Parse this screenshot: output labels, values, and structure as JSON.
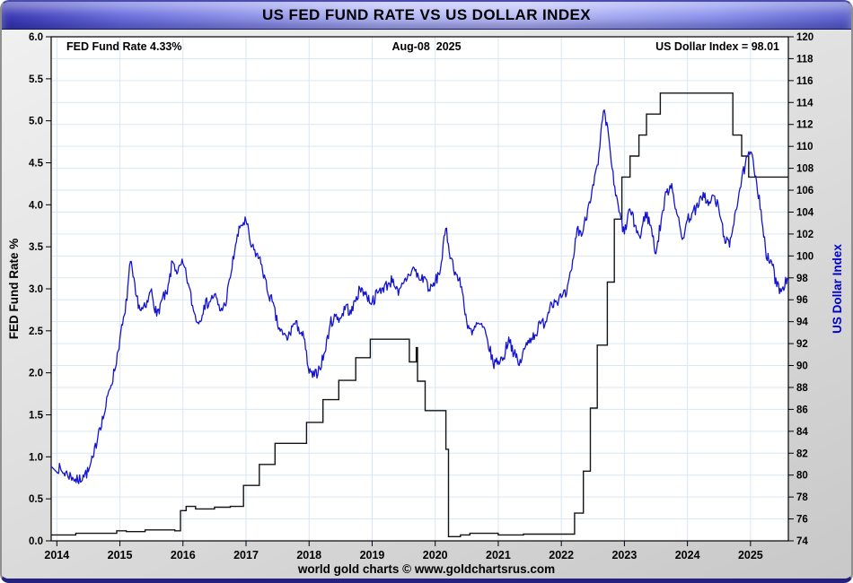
{
  "window": {
    "title": "US FED FUND RATE VS US DOLLAR INDEX"
  },
  "footer": {
    "caption": "world gold charts © www.goldchartsrus.com"
  },
  "chart_data": {
    "type": "line",
    "title": "US FED FUND RATE VS US DOLLAR INDEX",
    "annotations": {
      "left": "FED Fund Rate 4.33%",
      "center": "Aug-08  2025",
      "right": "US Dollar Index = 98.01"
    },
    "latest": {
      "fed_fund_rate_pct": 4.33,
      "us_dollar_index": 98.01,
      "as_of": "Aug-08 2025"
    },
    "x_axis": {
      "range": [
        2013.91,
        2025.6
      ],
      "year_ticks": [
        2014,
        2015,
        2016,
        2017,
        2018,
        2019,
        2020,
        2021,
        2022,
        2023,
        2024,
        2025
      ],
      "grid": true
    },
    "left_axis": {
      "label": "FED Fund Rate %",
      "range": [
        0.0,
        6.0
      ],
      "tick_step": 0.5,
      "color": "#000000"
    },
    "right_axis": {
      "label": "US Dollar Index",
      "range": [
        74,
        120
      ],
      "tick_step": 2,
      "color": "#0000cc"
    },
    "grid_color": "#d9e6f4",
    "plot_bg": "#ffffff",
    "series": [
      {
        "name": "FED Fund Rate",
        "axis": "left",
        "type": "step",
        "color": "#141414",
        "points": [
          [
            2014.0,
            0.07
          ],
          [
            2014.3,
            0.09
          ],
          [
            2014.6,
            0.09
          ],
          [
            2014.95,
            0.12
          ],
          [
            2015.1,
            0.11
          ],
          [
            2015.4,
            0.13
          ],
          [
            2015.7,
            0.13
          ],
          [
            2015.87,
            0.12
          ],
          [
            2015.96,
            0.36
          ],
          [
            2016.05,
            0.41
          ],
          [
            2016.2,
            0.38
          ],
          [
            2016.5,
            0.4
          ],
          [
            2016.75,
            0.41
          ],
          [
            2016.96,
            0.66
          ],
          [
            2017.21,
            0.91
          ],
          [
            2017.46,
            1.16
          ],
          [
            2017.96,
            1.41
          ],
          [
            2018.22,
            1.68
          ],
          [
            2018.47,
            1.91
          ],
          [
            2018.74,
            2.18
          ],
          [
            2018.97,
            2.4
          ],
          [
            2019.59,
            2.13
          ],
          [
            2019.7,
            2.3
          ],
          [
            2019.72,
            1.9
          ],
          [
            2019.84,
            1.55
          ],
          [
            2020.17,
            1.09
          ],
          [
            2020.21,
            0.05
          ],
          [
            2020.4,
            0.07
          ],
          [
            2020.55,
            0.09
          ],
          [
            2020.8,
            0.09
          ],
          [
            2021.0,
            0.07
          ],
          [
            2021.4,
            0.08
          ],
          [
            2021.75,
            0.08
          ],
          [
            2022.21,
            0.33
          ],
          [
            2022.35,
            0.83
          ],
          [
            2022.46,
            1.58
          ],
          [
            2022.57,
            2.33
          ],
          [
            2022.73,
            3.08
          ],
          [
            2022.84,
            3.83
          ],
          [
            2022.96,
            4.33
          ],
          [
            2023.09,
            4.58
          ],
          [
            2023.23,
            4.83
          ],
          [
            2023.35,
            5.08
          ],
          [
            2023.57,
            5.33
          ],
          [
            2024.72,
            4.83
          ],
          [
            2024.86,
            4.58
          ],
          [
            2024.97,
            4.33
          ],
          [
            2025.6,
            4.33
          ]
        ]
      },
      {
        "name": "US Dollar Index",
        "axis": "right",
        "type": "line",
        "color": "#1414cf",
        "x_start": 2014.0,
        "x_step": 0.0833333,
        "jitter": 0.55,
        "values": [
          80.8,
          80.3,
          80.1,
          79.8,
          79.4,
          80.0,
          80.3,
          81.7,
          84.2,
          85.5,
          87.8,
          89.5,
          92.5,
          94.8,
          99.5,
          96.5,
          95.0,
          95.3,
          97.0,
          94.5,
          96.0,
          96.5,
          99.5,
          98.5,
          99.3,
          97.5,
          95.0,
          93.8,
          95.5,
          95.8,
          96.5,
          95.0,
          95.5,
          98.0,
          101.0,
          102.8,
          103.2,
          100.8,
          100.2,
          99.2,
          96.9,
          95.8,
          93.7,
          92.8,
          92.5,
          93.8,
          93.5,
          92.5,
          89.3,
          89.0,
          89.8,
          91.2,
          93.8,
          94.5,
          94.3,
          95.5,
          94.7,
          96.3,
          97.1,
          96.3,
          95.8,
          96.6,
          97.1,
          97.4,
          97.9,
          96.4,
          97.5,
          98.3,
          98.9,
          97.8,
          98.1,
          96.8,
          97.6,
          98.8,
          102.5,
          99.8,
          98.3,
          97.2,
          94.0,
          92.8,
          93.8,
          93.5,
          92.2,
          90.2,
          90.4,
          90.7,
          92.6,
          91.1,
          90.0,
          91.5,
          92.5,
          92.8,
          93.8,
          94.0,
          95.8,
          95.9,
          96.2,
          96.5,
          98.8,
          102.5,
          102.0,
          104.2,
          106.5,
          108.3,
          113.2,
          111.0,
          106.5,
          104.0,
          102.0,
          104.3,
          102.8,
          101.6,
          104.0,
          102.8,
          100.2,
          103.3,
          105.8,
          106.6,
          103.8,
          101.5,
          103.3,
          104.0,
          104.4,
          105.8,
          104.6,
          105.5,
          104.2,
          101.8,
          100.8,
          103.8,
          106.2,
          108.3,
          109.5,
          107.3,
          104.2,
          99.8,
          99.5,
          97.2,
          97.0,
          98.01
        ]
      }
    ]
  }
}
